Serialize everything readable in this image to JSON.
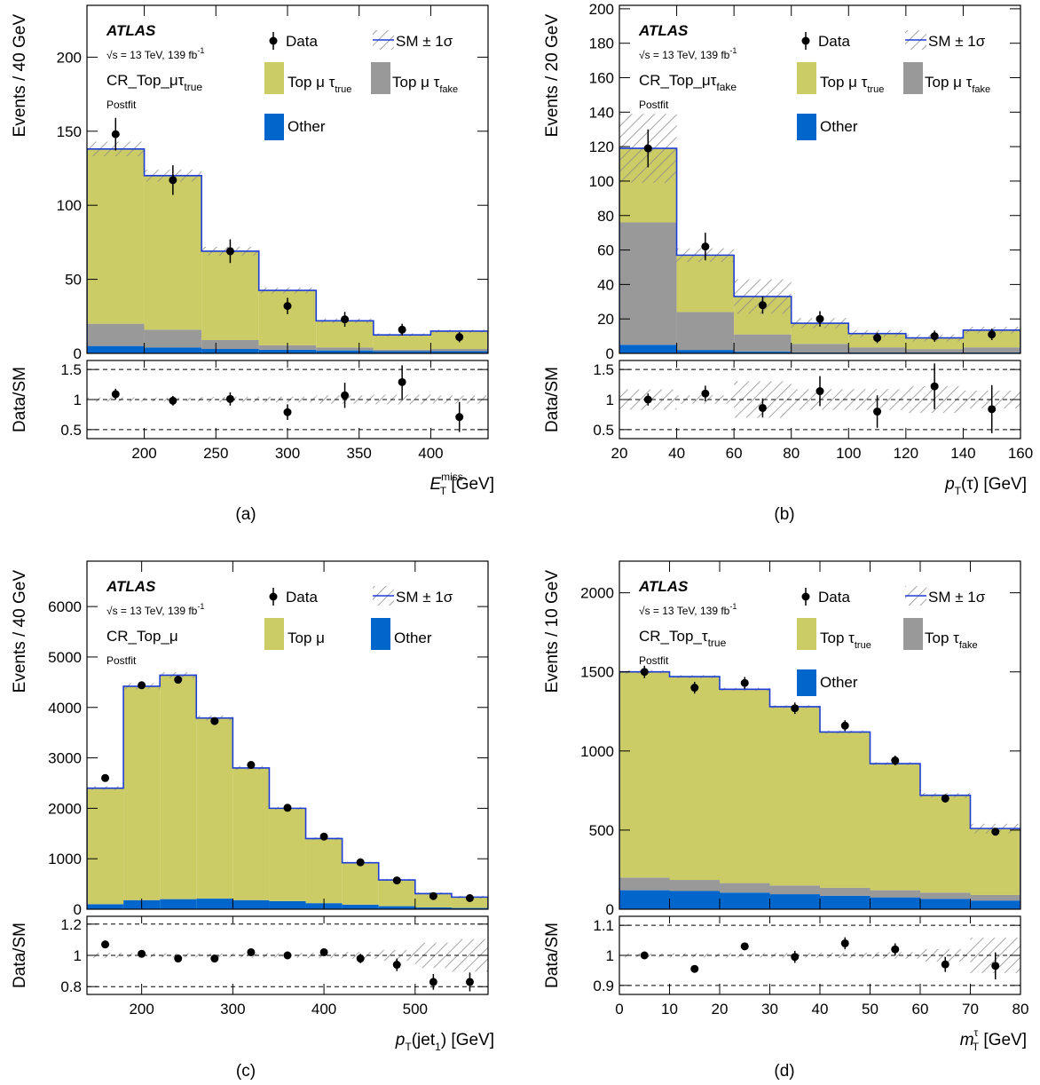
{
  "colors": {
    "top_true": "#cccc66",
    "top_fake": "#999999",
    "other": "#0066cc",
    "sm_line": "#1f3ed6",
    "hatch": "#888888",
    "data": "#000000"
  },
  "chart_data": [
    {
      "id": "a",
      "type": "bar",
      "caption": "(a)",
      "atlas": "ATLAS",
      "energy": "√s = 13 TeV, 139 fb",
      "energy_sup": "-1",
      "region_main": "CR_Top_μτ",
      "region_sub": "true",
      "postfit": "Postfit",
      "ylabel": "Events / 40 GeV",
      "ratio_ylabel": "Data/SM",
      "xlabel_main": "E",
      "xlabel_sub": "T",
      "xlabel_sup": "miss",
      "xlabel_unit": " [GeV]",
      "x_range": [
        160,
        440
      ],
      "y_range": [
        0,
        235
      ],
      "ratio_range": [
        0.35,
        1.65
      ],
      "x_ticks": [
        200,
        250,
        300,
        350,
        400
      ],
      "y_ticks": [
        0,
        50,
        100,
        150,
        200
      ],
      "ratio_ticks": [
        0.5,
        1,
        1.5
      ],
      "legend": {
        "data": "Data",
        "sm": "SM ± 1σ",
        "top_true": "Top μ τ",
        "top_true_sub": "true",
        "top_fake": "Top μ τ",
        "top_fake_sub": "fake",
        "other": "Other"
      },
      "edges": [
        160,
        200,
        240,
        280,
        320,
        360,
        400,
        440
      ],
      "stack": [
        {
          "name": "Other",
          "color_key": "other",
          "values": [
            5,
            4,
            3,
            2.5,
            2,
            1.5,
            1.5
          ]
        },
        {
          "name": "Top μ τfake",
          "color_key": "top_fake",
          "values": [
            15,
            12,
            6,
            3,
            2,
            1,
            1.5
          ]
        },
        {
          "name": "Top μ τtrue",
          "color_key": "top_true",
          "values": [
            118,
            104,
            60,
            37,
            18,
            10,
            12
          ]
        }
      ],
      "sm_unc": [
        5,
        4,
        3,
        2,
        1.5,
        1,
        1
      ],
      "data": {
        "x": [
          180,
          220,
          260,
          300,
          340,
          380,
          420
        ],
        "y": [
          148,
          117,
          69,
          32,
          23,
          16,
          11
        ],
        "err": [
          11,
          10,
          8,
          5.5,
          5,
          4,
          3.5
        ]
      },
      "ratio": {
        "x": [
          180,
          220,
          260,
          300,
          340,
          380,
          420
        ],
        "y": [
          1.09,
          0.98,
          1.01,
          0.79,
          1.07,
          1.29,
          0.71
        ],
        "err": [
          0.09,
          0.08,
          0.11,
          0.13,
          0.21,
          0.28,
          0.25
        ]
      }
    },
    {
      "id": "b",
      "type": "bar",
      "caption": "(b)",
      "atlas": "ATLAS",
      "energy": "√s = 13 TeV, 139 fb",
      "energy_sup": "-1",
      "region_main": "CR_Top_μτ",
      "region_sub": "fake",
      "postfit": "Postfit",
      "ylabel": "Events / 20 GeV",
      "ratio_ylabel": "Data/SM",
      "xlabel_main": "p",
      "xlabel_sub": "T",
      "xlabel_sup": "",
      "xlabel_unit": "(τ) [GeV]",
      "x_range": [
        20,
        160
      ],
      "y_range": [
        0,
        202
      ],
      "ratio_range": [
        0.35,
        1.65
      ],
      "x_ticks": [
        20,
        40,
        60,
        80,
        100,
        120,
        140,
        160
      ],
      "y_ticks": [
        0,
        20,
        40,
        60,
        80,
        100,
        120,
        140,
        160,
        180,
        200
      ],
      "ratio_ticks": [
        0.5,
        1,
        1.5
      ],
      "legend": {
        "data": "Data",
        "sm": "SM ± 1σ",
        "top_true": "Top μ τ",
        "top_true_sub": "true",
        "top_fake": "Top μ τ",
        "top_fake_sub": "fake",
        "other": "Other"
      },
      "edges": [
        20,
        40,
        60,
        80,
        100,
        120,
        140,
        160
      ],
      "stack": [
        {
          "name": "Other",
          "color_key": "other",
          "values": [
            5,
            2,
            1,
            0.5,
            0.5,
            0.5,
            0.5
          ]
        },
        {
          "name": "Top μ τfake",
          "color_key": "top_fake",
          "values": [
            71,
            22,
            10,
            5,
            3,
            2,
            3
          ]
        },
        {
          "name": "Top μ τtrue",
          "color_key": "top_true",
          "values": [
            43,
            33,
            22,
            12,
            8,
            6.5,
            10
          ]
        }
      ],
      "sm_unc": [
        20,
        4,
        10,
        3,
        2,
        2,
        2
      ],
      "data": {
        "x": [
          30,
          50,
          70,
          90,
          110,
          130,
          150
        ],
        "y": [
          119,
          62,
          28,
          20,
          9,
          10,
          11
        ],
        "err": [
          11,
          8,
          5,
          4.5,
          3,
          3.2,
          3.3
        ]
      },
      "ratio": {
        "x": [
          30,
          50,
          70,
          90,
          110,
          130,
          150
        ],
        "y": [
          1.0,
          1.1,
          0.86,
          1.14,
          0.8,
          1.22,
          0.84
        ],
        "err": [
          0.1,
          0.13,
          0.16,
          0.25,
          0.27,
          0.38,
          0.4
        ]
      }
    },
    {
      "id": "c",
      "type": "bar",
      "caption": "(c)",
      "atlas": "ATLAS",
      "energy": "√s = 13 TeV, 139 fb",
      "energy_sup": "-1",
      "region_main": "CR_Top_μ",
      "region_sub": "",
      "postfit": "Postfit",
      "ylabel": "Events / 40 GeV",
      "ratio_ylabel": "Data/SM",
      "xlabel_main": "p",
      "xlabel_sub": "T",
      "xlabel_sup": "",
      "xlabel_unit": "(jet",
      "xlabel_unit_sub": "1",
      "xlabel_unit_tail": ") [GeV]",
      "x_range": [
        140,
        580
      ],
      "y_range": [
        0,
        6900
      ],
      "ratio_range": [
        0.75,
        1.25
      ],
      "x_ticks": [
        200,
        300,
        400,
        500
      ],
      "y_ticks": [
        0,
        1000,
        2000,
        3000,
        4000,
        5000,
        6000
      ],
      "ratio_ticks": [
        0.8,
        1,
        1.2
      ],
      "legend": {
        "data": "Data",
        "sm": "SM ± 1σ",
        "top_true": "Top μ",
        "top_true_sub": "",
        "top_fake": "",
        "top_fake_sub": "",
        "other": "Other"
      },
      "edges": [
        140,
        180,
        220,
        260,
        300,
        340,
        380,
        420,
        460,
        500,
        540,
        580
      ],
      "stack": [
        {
          "name": "Other",
          "color_key": "other",
          "values": [
            100,
            180,
            200,
            210,
            180,
            160,
            120,
            90,
            60,
            35,
            25
          ]
        },
        {
          "name": "Top μ",
          "color_key": "top_true",
          "values": [
            2300,
            4240,
            4440,
            3580,
            2620,
            1840,
            1280,
            830,
            520,
            275,
            215
          ]
        }
      ],
      "sm_unc": [
        40,
        60,
        60,
        50,
        40,
        30,
        25,
        20,
        20,
        25,
        25
      ],
      "data": {
        "x": [
          160,
          200,
          240,
          280,
          320,
          360,
          400,
          440,
          480,
          520,
          560
        ],
        "y": [
          2600,
          4440,
          4550,
          3730,
          2860,
          2010,
          1440,
          930,
          570,
          260,
          220
        ],
        "err": [
          51,
          67,
          68,
          61,
          54,
          45,
          38,
          31,
          24,
          16,
          15
        ]
      },
      "ratio": {
        "x": [
          160,
          200,
          240,
          280,
          320,
          360,
          400,
          440,
          480,
          520,
          560
        ],
        "y": [
          1.07,
          1.01,
          0.98,
          0.98,
          1.02,
          1.0,
          1.02,
          0.98,
          0.94,
          0.83,
          0.83
        ],
        "err": [
          0.02,
          0.02,
          0.02,
          0.02,
          0.02,
          0.02,
          0.02,
          0.03,
          0.04,
          0.05,
          0.06
        ]
      }
    },
    {
      "id": "d",
      "type": "bar",
      "caption": "(d)",
      "atlas": "ATLAS",
      "energy": "√s = 13 TeV, 139 fb",
      "energy_sup": "-1",
      "region_main": "CR_Top_τ",
      "region_sub": "true",
      "postfit": "Postfit",
      "ylabel": "Events / 10 GeV",
      "ratio_ylabel": "Data/SM",
      "xlabel_main": "m",
      "xlabel_sub": "T",
      "xlabel_sup": "τ",
      "xlabel_unit": " [GeV]",
      "x_range": [
        0,
        80
      ],
      "y_range": [
        0,
        2200
      ],
      "ratio_range": [
        0.87,
        1.13
      ],
      "x_ticks": [
        0,
        10,
        20,
        30,
        40,
        50,
        60,
        70,
        80
      ],
      "y_ticks": [
        0,
        500,
        1000,
        1500,
        2000
      ],
      "ratio_ticks": [
        0.9,
        1,
        1.1
      ],
      "legend": {
        "data": "Data",
        "sm": "SM ± 1σ",
        "top_true": "Top τ",
        "top_true_sub": "true",
        "top_fake": "Top τ",
        "top_fake_sub": "fake",
        "other": "Other"
      },
      "edges": [
        0,
        10,
        20,
        30,
        40,
        50,
        60,
        70,
        80
      ],
      "stack": [
        {
          "name": "Other",
          "color_key": "other",
          "values": [
            120,
            115,
            105,
            95,
            85,
            75,
            65,
            55
          ]
        },
        {
          "name": "Top τfake",
          "color_key": "top_fake",
          "values": [
            80,
            70,
            60,
            55,
            50,
            45,
            40,
            35
          ]
        },
        {
          "name": "Top τtrue",
          "color_key": "top_true",
          "values": [
            1300,
            1285,
            1225,
            1130,
            985,
            800,
            615,
            420
          ]
        }
      ],
      "sm_unc": [
        10,
        10,
        10,
        10,
        10,
        10,
        15,
        30
      ],
      "data": {
        "x": [
          5,
          15,
          25,
          35,
          45,
          55,
          65,
          75
        ],
        "y": [
          1500,
          1400,
          1430,
          1270,
          1160,
          940,
          700,
          490
        ],
        "err": [
          39,
          37,
          38,
          36,
          34,
          31,
          26,
          22
        ]
      },
      "ratio": {
        "x": [
          5,
          15,
          25,
          35,
          45,
          55,
          65,
          75
        ],
        "y": [
          1.0,
          0.955,
          1.03,
          0.995,
          1.04,
          1.02,
          0.97,
          0.965
        ],
        "err": [
          0.006,
          0.01,
          0.008,
          0.02,
          0.02,
          0.02,
          0.025,
          0.045
        ]
      }
    }
  ]
}
